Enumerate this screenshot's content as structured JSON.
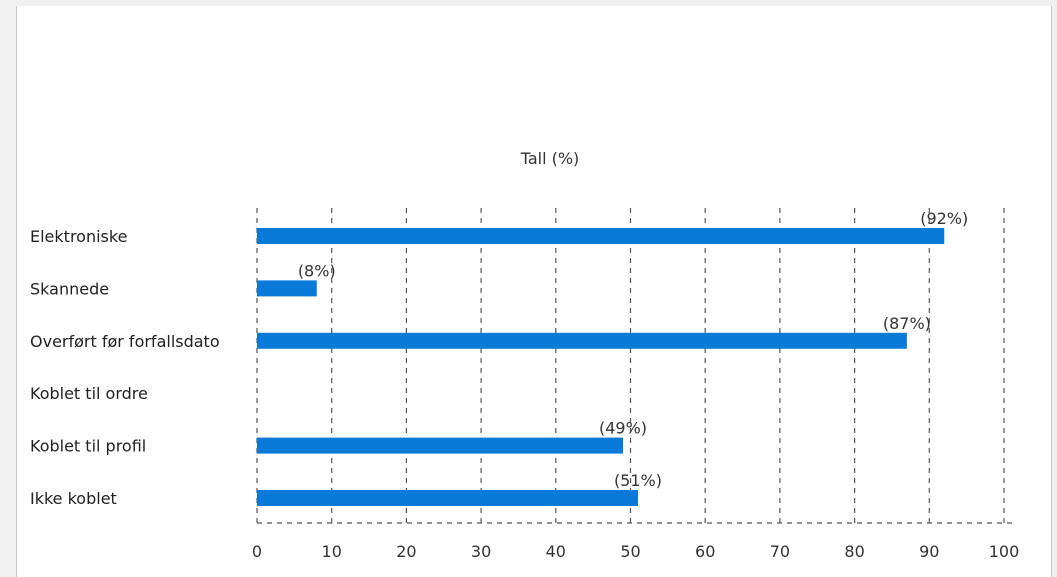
{
  "chart_data": {
    "type": "bar",
    "orientation": "horizontal",
    "title": "Tall (%)",
    "categories": [
      "Elektroniske",
      "Skannede",
      "Overført før forfallsdato",
      "Koblet til ordre",
      "Koblet til profil",
      "Ikke koblet"
    ],
    "values": [
      92,
      8,
      87,
      null,
      49,
      51
    ],
    "data_labels": [
      "(92%)",
      "(8%)",
      "(87%)",
      "",
      "(49%)",
      "(51%)"
    ],
    "xlim": [
      0,
      100
    ],
    "x_ticks": [
      0,
      10,
      20,
      30,
      40,
      50,
      60,
      70,
      80,
      90,
      100
    ],
    "grid": "vertical-dashed",
    "bar_color": "#0a7ad8",
    "grid_color": "#555555",
    "axis_color": "#555555"
  }
}
